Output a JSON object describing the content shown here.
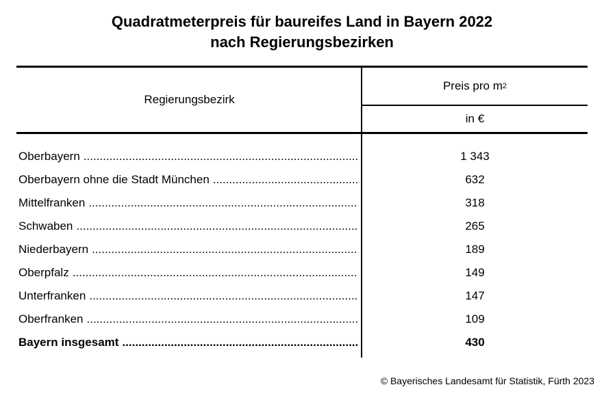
{
  "title": {
    "line1": "Quadratmeterpreis für baureifes Land in Bayern 2022",
    "line2": "nach Regierungsbezirken"
  },
  "table": {
    "header": {
      "region": "Regierungsbezirk",
      "price_base": "Preis pro m",
      "price_sup": "2",
      "unit": "in €"
    },
    "rows": [
      {
        "region": "Oberbayern",
        "price": "1 343",
        "bold": false
      },
      {
        "region": "Oberbayern ohne die Stadt München",
        "price": "632",
        "bold": false
      },
      {
        "region": "Mittelfranken",
        "price": "318",
        "bold": false
      },
      {
        "region": "Schwaben",
        "price": "265",
        "bold": false
      },
      {
        "region": "Niederbayern",
        "price": "189",
        "bold": false
      },
      {
        "region": "Oberpfalz",
        "price": "149",
        "bold": false
      },
      {
        "region": "Unterfranken",
        "price": "147",
        "bold": false
      },
      {
        "region": "Oberfranken",
        "price": "109",
        "bold": false
      },
      {
        "region": "Bayern insgesamt",
        "price": "430",
        "bold": true
      }
    ]
  },
  "footer": {
    "copyright": "© Bayerisches Landesamt für Statistik, Fürth 2023"
  },
  "colors": {
    "text": "#000000",
    "background": "#ffffff",
    "border": "#000000"
  },
  "chart_data": {
    "type": "table",
    "title": "Quadratmeterpreis für baureifes Land in Bayern 2022 nach Regierungsbezirken",
    "columns": [
      "Regierungsbezirk",
      "Preis pro m² in €"
    ],
    "categories": [
      "Oberbayern",
      "Oberbayern ohne die Stadt München",
      "Mittelfranken",
      "Schwaben",
      "Niederbayern",
      "Oberpfalz",
      "Unterfranken",
      "Oberfranken",
      "Bayern insgesamt"
    ],
    "values": [
      1343,
      632,
      318,
      265,
      189,
      149,
      147,
      109,
      430
    ],
    "unit": "EUR pro m²",
    "source": "© Bayerisches Landesamt für Statistik, Fürth 2023"
  }
}
